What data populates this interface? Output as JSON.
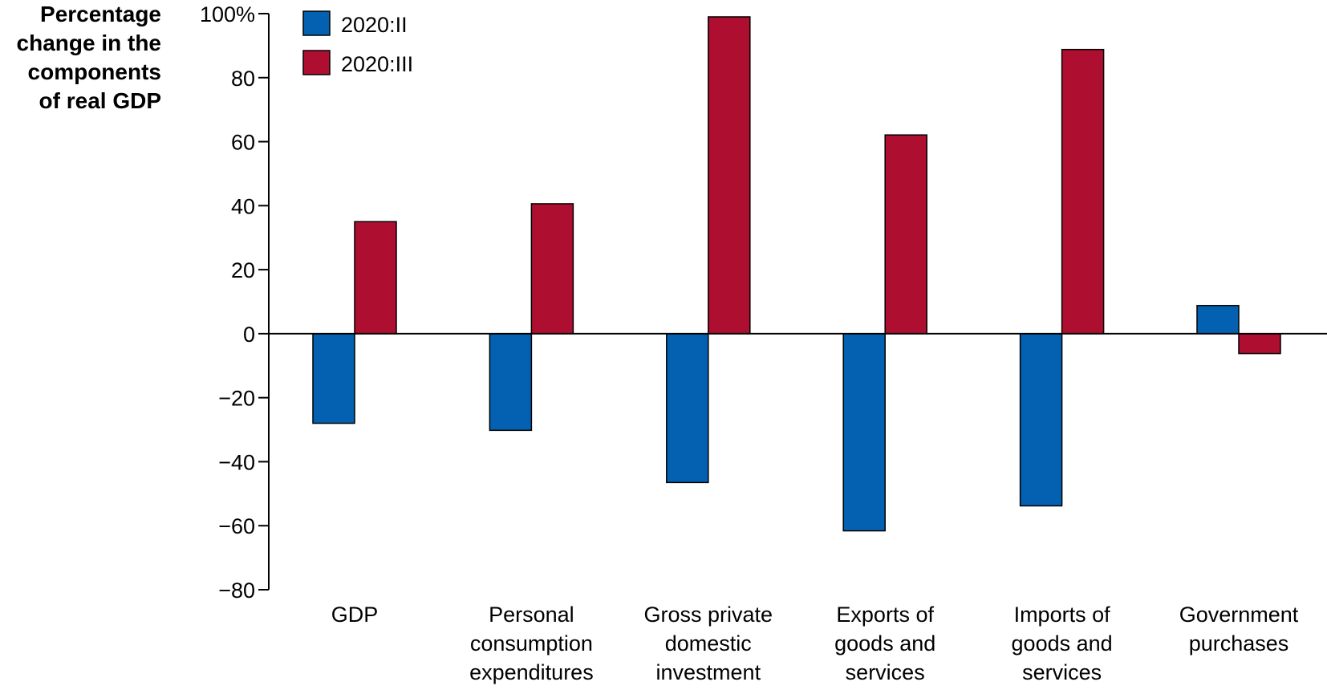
{
  "colors": {
    "series_2020_II": "#0461b1",
    "series_2020_III": "#ae0e2f",
    "axis": "#000000"
  },
  "chart_data": {
    "type": "bar",
    "title": "",
    "ylabel": "Percentage change in the components of real GDP",
    "ylabel_lines": [
      "Percentage",
      "change in the",
      "components",
      "of real GDP"
    ],
    "xlabel": "",
    "ylim": [
      -80,
      100
    ],
    "yticks": [
      100,
      80,
      60,
      40,
      20,
      0,
      -20,
      -40,
      -60,
      -80
    ],
    "ytick_labels": [
      "100%",
      "80",
      "60",
      "40",
      "20",
      "0",
      "−20",
      "−40",
      "−60",
      "−80"
    ],
    "categories": [
      "GDP",
      "Personal consumption expenditures",
      "Gross private domestic investment",
      "Exports of goods and services",
      "Imports of goods and services",
      "Government purchases"
    ],
    "category_lines": [
      [
        "GDP"
      ],
      [
        "Personal",
        "consumption",
        "expenditures"
      ],
      [
        "Gross private",
        "domestic",
        "investment"
      ],
      [
        "Exports of",
        "goods and",
        "services"
      ],
      [
        "Imports of",
        "goods and",
        "services"
      ],
      [
        "Government",
        "purchases"
      ]
    ],
    "series": [
      {
        "name": "2020:II",
        "values": [
          -28.0,
          -30.2,
          -46.5,
          -61.6,
          -53.8,
          8.8
        ],
        "color": "#0461b1"
      },
      {
        "name": "2020:III",
        "values": [
          35.0,
          40.6,
          99.0,
          62.1,
          88.8,
          -6.2
        ],
        "color": "#ae0e2f"
      }
    ],
    "legend": {
      "placement": "top-left"
    },
    "grid": false
  }
}
